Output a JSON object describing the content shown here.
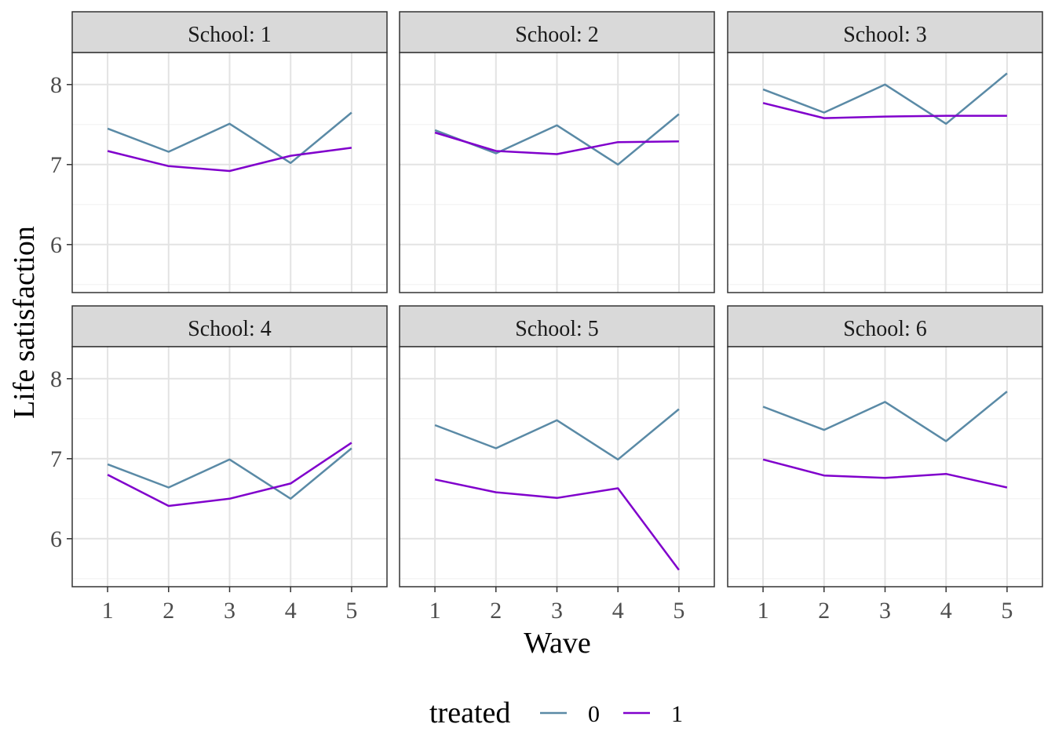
{
  "chart_data": {
    "type": "line",
    "xlabel": "Wave",
    "ylabel": "Life satisfaction",
    "x": [
      1,
      2,
      3,
      4,
      5
    ],
    "xticks": [
      "1",
      "2",
      "3",
      "4",
      "5"
    ],
    "yticks": [
      6,
      7,
      8
    ],
    "ylim": [
      5.4,
      8.4
    ],
    "grid": true,
    "legend": {
      "title": "treated",
      "position": "bottom",
      "entries": [
        {
          "label": "0",
          "color": "#5a8aa6"
        },
        {
          "label": "1",
          "color": "#8000cc"
        }
      ]
    },
    "facets": [
      {
        "label": "School: 1",
        "series": [
          {
            "key": "0",
            "values": [
              7.45,
              7.16,
              7.51,
              7.02,
              7.65
            ]
          },
          {
            "key": "1",
            "values": [
              7.17,
              6.98,
              6.92,
              7.11,
              7.21
            ]
          }
        ]
      },
      {
        "label": "School: 2",
        "series": [
          {
            "key": "0",
            "values": [
              7.43,
              7.14,
              7.49,
              7.0,
              7.63
            ]
          },
          {
            "key": "1",
            "values": [
              7.4,
              7.17,
              7.13,
              7.28,
              7.29
            ]
          }
        ]
      },
      {
        "label": "School: 3",
        "series": [
          {
            "key": "0",
            "values": [
              7.94,
              7.65,
              8.0,
              7.51,
              8.14
            ]
          },
          {
            "key": "1",
            "values": [
              7.77,
              7.58,
              7.6,
              7.61,
              7.61
            ]
          }
        ]
      },
      {
        "label": "School: 4",
        "series": [
          {
            "key": "0",
            "values": [
              6.93,
              6.64,
              6.99,
              6.5,
              7.13
            ]
          },
          {
            "key": "1",
            "values": [
              6.8,
              6.41,
              6.5,
              6.69,
              7.2
            ]
          }
        ]
      },
      {
        "label": "School: 5",
        "series": [
          {
            "key": "0",
            "values": [
              7.42,
              7.13,
              7.48,
              6.99,
              7.62
            ]
          },
          {
            "key": "1",
            "values": [
              6.74,
              6.58,
              6.51,
              6.63,
              5.61
            ]
          }
        ]
      },
      {
        "label": "School: 6",
        "series": [
          {
            "key": "0",
            "values": [
              7.65,
              7.36,
              7.71,
              7.22,
              7.84
            ]
          },
          {
            "key": "1",
            "values": [
              6.99,
              6.79,
              6.76,
              6.81,
              6.64
            ]
          }
        ]
      }
    ]
  }
}
